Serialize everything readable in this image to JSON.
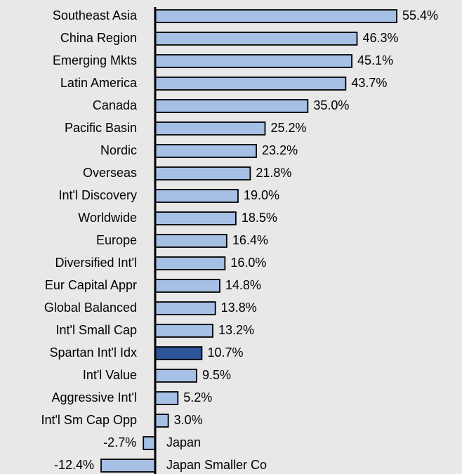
{
  "chart_data": {
    "type": "bar",
    "orientation": "horizontal",
    "categories": [
      "Southeast Asia",
      "China Region",
      "Emerging Mkts",
      "Latin America",
      "Canada",
      "Pacific Basin",
      "Nordic",
      "Overseas",
      "Int'l Discovery",
      "Worldwide",
      "Europe",
      "Diversified Int'l",
      "Eur Capital Appr",
      "Global Balanced",
      "Int'l Small Cap",
      "Spartan Int'l Idx",
      "Int'l Value",
      "Aggressive Int'l",
      "Int'l Sm Cap Opp",
      "Japan",
      "Japan Smaller Co"
    ],
    "values": [
      55.4,
      46.3,
      45.1,
      43.7,
      35.0,
      25.2,
      23.2,
      21.8,
      19.0,
      18.5,
      16.4,
      16.0,
      14.8,
      13.8,
      13.2,
      10.7,
      9.5,
      5.2,
      3.0,
      -2.7,
      -12.4
    ],
    "value_labels": [
      "55.4%",
      "46.3%",
      "45.1%",
      "43.7%",
      "35.0%",
      "25.2%",
      "23.2%",
      "21.8%",
      "19.0%",
      "18.5%",
      "16.4%",
      "16.0%",
      "14.8%",
      "13.8%",
      "13.2%",
      "10.7%",
      "9.5%",
      "5.2%",
      "3.0%",
      "-2.7%",
      "-12.4%"
    ],
    "colors": [
      "#a6bfe4",
      "#a6bfe4",
      "#a6bfe4",
      "#a6bfe4",
      "#a6bfe4",
      "#a6bfe4",
      "#a6bfe4",
      "#a6bfe4",
      "#a6bfe4",
      "#a6bfe4",
      "#a6bfe4",
      "#a6bfe4",
      "#a6bfe4",
      "#a6bfe4",
      "#a6bfe4",
      "#2e5597",
      "#a6bfe4",
      "#a6bfe4",
      "#a6bfe4",
      "#a6bfe4",
      "#a6bfe4"
    ]
  }
}
